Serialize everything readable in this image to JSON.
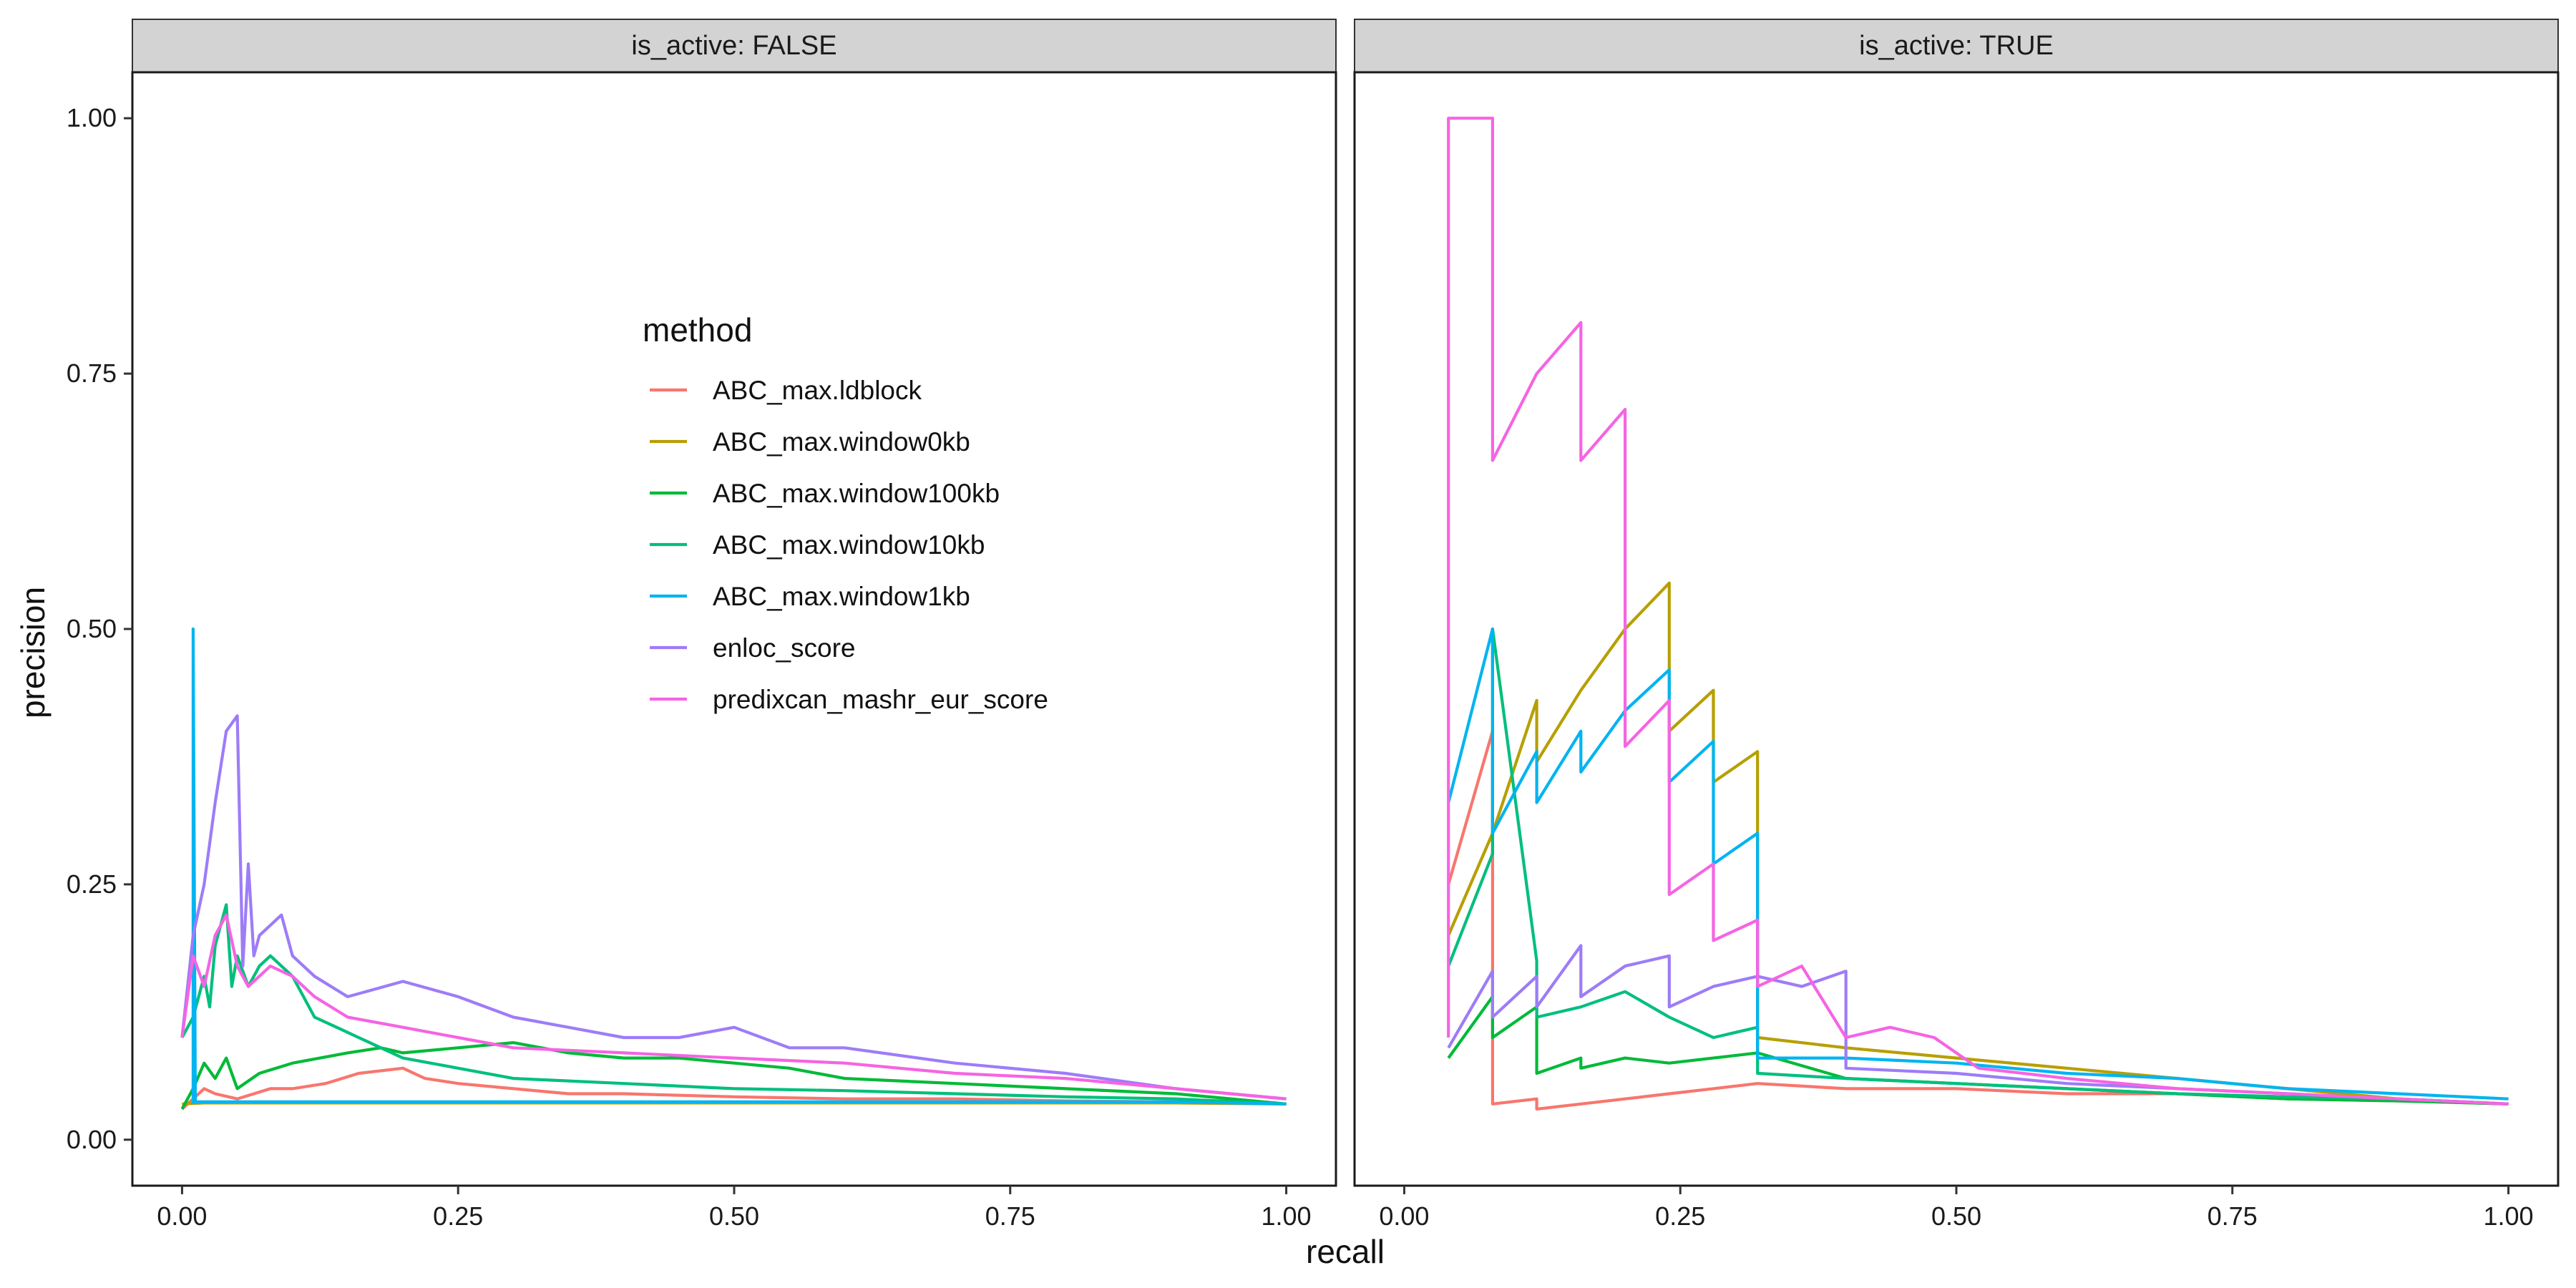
{
  "chart_data": {
    "type": "line",
    "xlabel": "recall",
    "ylabel": "precision",
    "xlim": [
      0,
      1
    ],
    "ylim": [
      0,
      1
    ],
    "x_ticks": [
      "0.00",
      "0.25",
      "0.50",
      "0.75",
      "1.00"
    ],
    "y_ticks": [
      "0.00",
      "0.25",
      "0.50",
      "0.75",
      "1.00"
    ],
    "grid": false,
    "legend": {
      "title": "method",
      "placement": "inside-left-panel-top-center",
      "entries": [
        "ABC_max.ldblock",
        "ABC_max.window0kb",
        "ABC_max.window100kb",
        "ABC_max.window10kb",
        "ABC_max.window1kb",
        "enloc_score",
        "predixcan_mashr_eur_score"
      ]
    },
    "colors": {
      "ABC_max.ldblock": "#F8766D",
      "ABC_max.window0kb": "#B79F00",
      "ABC_max.window100kb": "#00BA38",
      "ABC_max.window10kb": "#00BF7D",
      "ABC_max.window1kb": "#00B4F0",
      "enloc_score": "#9D7CF8",
      "predixcan_mashr_eur_score": "#F564E3"
    },
    "panels": [
      {
        "strip": "is_active: FALSE",
        "series": [
          {
            "name": "ABC_max.ldblock",
            "x": [
              0.0,
              0.01,
              0.02,
              0.03,
              0.05,
              0.08,
              0.1,
              0.13,
              0.16,
              0.2,
              0.22,
              0.25,
              0.3,
              0.35,
              0.4,
              0.5,
              0.6,
              0.7,
              0.8,
              0.9,
              1.0
            ],
            "y": [
              0.03,
              0.04,
              0.05,
              0.045,
              0.04,
              0.05,
              0.05,
              0.055,
              0.065,
              0.07,
              0.06,
              0.055,
              0.05,
              0.045,
              0.045,
              0.042,
              0.04,
              0.04,
              0.038,
              0.037,
              0.035
            ]
          },
          {
            "name": "ABC_max.window0kb",
            "x": [
              0.0,
              0.02,
              0.05,
              0.1,
              0.2,
              0.3,
              0.4,
              0.5,
              0.6,
              0.7,
              0.8,
              0.9,
              1.0
            ],
            "y": [
              0.035,
              0.036,
              0.036,
              0.036,
              0.036,
              0.036,
              0.036,
              0.036,
              0.036,
              0.036,
              0.036,
              0.036,
              0.035
            ]
          },
          {
            "name": "ABC_max.window100kb",
            "x": [
              0.0,
              0.01,
              0.02,
              0.03,
              0.04,
              0.05,
              0.07,
              0.1,
              0.15,
              0.18,
              0.2,
              0.25,
              0.3,
              0.35,
              0.4,
              0.45,
              0.5,
              0.55,
              0.6,
              0.7,
              0.8,
              0.9,
              1.0
            ],
            "y": [
              0.03,
              0.05,
              0.075,
              0.06,
              0.08,
              0.05,
              0.065,
              0.075,
              0.085,
              0.09,
              0.085,
              0.09,
              0.095,
              0.085,
              0.08,
              0.08,
              0.075,
              0.07,
              0.06,
              0.055,
              0.05,
              0.045,
              0.035
            ]
          },
          {
            "name": "ABC_max.window10kb",
            "x": [
              0.0,
              0.01,
              0.02,
              0.025,
              0.03,
              0.04,
              0.045,
              0.05,
              0.06,
              0.07,
              0.08,
              0.1,
              0.12,
              0.14,
              0.16,
              0.18,
              0.2,
              0.25,
              0.3,
              0.4,
              0.5,
              0.6,
              0.7,
              0.8,
              0.9,
              1.0
            ],
            "y": [
              0.1,
              0.12,
              0.16,
              0.13,
              0.19,
              0.23,
              0.15,
              0.18,
              0.15,
              0.17,
              0.18,
              0.16,
              0.12,
              0.11,
              0.1,
              0.09,
              0.08,
              0.07,
              0.06,
              0.055,
              0.05,
              0.048,
              0.045,
              0.042,
              0.04,
              0.035
            ]
          },
          {
            "name": "ABC_max.window1kb",
            "x": [
              0.01,
              0.01,
              0.012,
              0.02,
              0.05,
              0.1,
              0.2,
              0.3,
              0.4,
              0.5,
              0.6,
              0.7,
              0.8,
              0.9,
              1.0
            ],
            "y": [
              0.035,
              0.5,
              0.037,
              0.037,
              0.037,
              0.037,
              0.037,
              0.037,
              0.037,
              0.037,
              0.037,
              0.037,
              0.037,
              0.037,
              0.035
            ]
          },
          {
            "name": "enloc_score",
            "x": [
              0.0,
              0.01,
              0.02,
              0.03,
              0.04,
              0.05,
              0.055,
              0.06,
              0.065,
              0.07,
              0.08,
              0.09,
              0.1,
              0.12,
              0.15,
              0.2,
              0.25,
              0.3,
              0.35,
              0.4,
              0.45,
              0.5,
              0.55,
              0.6,
              0.7,
              0.8,
              0.9,
              1.0
            ],
            "y": [
              0.1,
              0.2,
              0.25,
              0.33,
              0.4,
              0.415,
              0.17,
              0.27,
              0.18,
              0.2,
              0.21,
              0.22,
              0.18,
              0.16,
              0.14,
              0.155,
              0.14,
              0.12,
              0.11,
              0.1,
              0.1,
              0.11,
              0.09,
              0.09,
              0.075,
              0.065,
              0.05,
              0.04
            ]
          },
          {
            "name": "predixcan_mashr_eur_score",
            "x": [
              0.0,
              0.01,
              0.02,
              0.03,
              0.04,
              0.05,
              0.06,
              0.08,
              0.1,
              0.12,
              0.15,
              0.2,
              0.25,
              0.3,
              0.4,
              0.5,
              0.6,
              0.7,
              0.8,
              0.9,
              1.0
            ],
            "y": [
              0.1,
              0.18,
              0.15,
              0.2,
              0.22,
              0.17,
              0.15,
              0.17,
              0.16,
              0.14,
              0.12,
              0.11,
              0.1,
              0.09,
              0.085,
              0.08,
              0.075,
              0.065,
              0.06,
              0.05,
              0.04
            ]
          }
        ]
      },
      {
        "strip": "is_active: TRUE",
        "series": [
          {
            "name": "ABC_max.ldblock",
            "x": [
              0.04,
              0.04,
              0.08,
              0.08,
              0.12,
              0.12,
              0.16,
              0.2,
              0.24,
              0.28,
              0.32,
              0.4,
              0.5,
              0.6,
              0.7,
              0.8,
              0.9,
              1.0
            ],
            "y": [
              0.25,
              0.25,
              0.4,
              0.035,
              0.04,
              0.03,
              0.035,
              0.04,
              0.045,
              0.05,
              0.055,
              0.05,
              0.05,
              0.045,
              0.045,
              0.04,
              0.038,
              0.035
            ]
          },
          {
            "name": "ABC_max.window0kb",
            "x": [
              0.04,
              0.08,
              0.12,
              0.12,
              0.16,
              0.2,
              0.24,
              0.24,
              0.28,
              0.28,
              0.32,
              0.32,
              0.4,
              0.5,
              0.6,
              0.7,
              0.8,
              0.9,
              1.0
            ],
            "y": [
              0.2,
              0.3,
              0.43,
              0.37,
              0.44,
              0.5,
              0.545,
              0.4,
              0.44,
              0.35,
              0.38,
              0.1,
              0.09,
              0.08,
              0.07,
              0.06,
              0.05,
              0.04,
              0.035
            ]
          },
          {
            "name": "ABC_max.window100kb",
            "x": [
              0.04,
              0.08,
              0.08,
              0.12,
              0.12,
              0.16,
              0.16,
              0.2,
              0.24,
              0.28,
              0.32,
              0.4,
              0.5,
              0.6,
              0.7,
              0.8,
              0.9,
              1.0
            ],
            "y": [
              0.08,
              0.14,
              0.1,
              0.13,
              0.065,
              0.08,
              0.07,
              0.08,
              0.075,
              0.08,
              0.085,
              0.06,
              0.055,
              0.05,
              0.045,
              0.04,
              0.038,
              0.035
            ]
          },
          {
            "name": "ABC_max.window10kb",
            "x": [
              0.04,
              0.08,
              0.08,
              0.12,
              0.12,
              0.16,
              0.2,
              0.24,
              0.28,
              0.32,
              0.32,
              0.4,
              0.5,
              0.6,
              0.7,
              0.8,
              0.9,
              1.0
            ],
            "y": [
              0.17,
              0.28,
              0.5,
              0.175,
              0.12,
              0.13,
              0.145,
              0.12,
              0.1,
              0.11,
              0.065,
              0.06,
              0.055,
              0.05,
              0.045,
              0.042,
              0.04,
              0.035
            ]
          },
          {
            "name": "ABC_max.window1kb",
            "x": [
              0.04,
              0.08,
              0.08,
              0.12,
              0.12,
              0.16,
              0.16,
              0.2,
              0.24,
              0.24,
              0.28,
              0.28,
              0.32,
              0.32,
              0.4,
              0.5,
              0.6,
              0.7,
              0.8,
              0.9,
              1.0
            ],
            "y": [
              0.33,
              0.5,
              0.3,
              0.38,
              0.33,
              0.4,
              0.36,
              0.42,
              0.46,
              0.35,
              0.39,
              0.27,
              0.3,
              0.08,
              0.08,
              0.075,
              0.065,
              0.06,
              0.05,
              0.045,
              0.04
            ]
          },
          {
            "name": "enloc_score",
            "x": [
              0.04,
              0.08,
              0.08,
              0.12,
              0.12,
              0.16,
              0.16,
              0.2,
              0.24,
              0.24,
              0.28,
              0.32,
              0.36,
              0.4,
              0.4,
              0.5,
              0.6,
              0.7,
              0.8,
              0.9,
              1.0
            ],
            "y": [
              0.09,
              0.165,
              0.12,
              0.16,
              0.13,
              0.19,
              0.14,
              0.17,
              0.18,
              0.13,
              0.15,
              0.16,
              0.15,
              0.165,
              0.07,
              0.065,
              0.055,
              0.05,
              0.045,
              0.04,
              0.035
            ]
          },
          {
            "name": "predixcan_mashr_eur_score",
            "x": [
              0.04,
              0.04,
              0.08,
              0.08,
              0.12,
              0.16,
              0.16,
              0.2,
              0.2,
              0.24,
              0.24,
              0.28,
              0.28,
              0.32,
              0.32,
              0.36,
              0.4,
              0.44,
              0.48,
              0.52,
              0.6,
              0.7,
              0.8,
              0.9,
              1.0
            ],
            "y": [
              0.1,
              1.0,
              1.0,
              0.665,
              0.75,
              0.8,
              0.665,
              0.715,
              0.385,
              0.43,
              0.24,
              0.27,
              0.195,
              0.215,
              0.15,
              0.17,
              0.1,
              0.11,
              0.1,
              0.07,
              0.06,
              0.05,
              0.045,
              0.04,
              0.035
            ]
          }
        ]
      }
    ]
  }
}
